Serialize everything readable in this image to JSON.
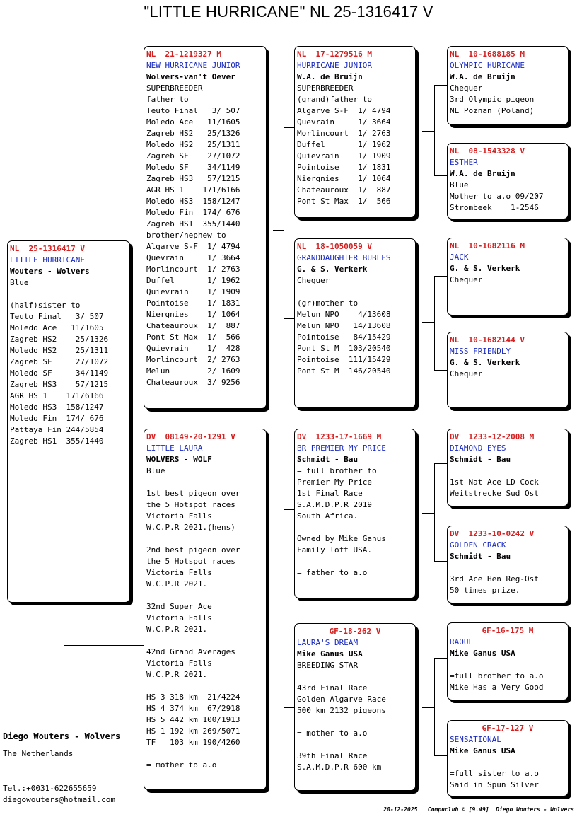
{
  "title": "\"LITTLE HURRICANE\"  NL  25-1316417 V",
  "subject": {
    "ring": "NL  25-1316417 V",
    "name": "LITTLE HURRICANE",
    "owner": "Wouters - Wolvers",
    "lines": [
      "Blue",
      "",
      "(half)sister to",
      "Teuto Final   3/ 507",
      "Moledo Ace   11/1605",
      "Zagreb HS2    25/1326",
      "Moledo HS2    25/1311",
      "Zagreb SF     27/1072",
      "Moledo SF     34/1149",
      "Zagreb HS3    57/1215",
      "AGR HS 1    171/6166",
      "Moledo HS3  158/1247",
      "Moledo Fin  174/ 676",
      "Pattaya Fin 244/5854",
      "Zagreb HS1  355/1440"
    ]
  },
  "father": {
    "ring": "NL  21-1219327 M",
    "name": "NEW HURRICANE JUNIOR",
    "owner": "Wolvers-van't Oever",
    "lines": [
      "SUPERBREEDER",
      "father to",
      "Teuto Final   3/ 507",
      "Moledo Ace   11/1605",
      "Zagreb HS2   25/1326",
      "Moledo HS2   25/1311",
      "Zagreb SF    27/1072",
      "Moledo SF    34/1149",
      "Zagreb HS3   57/1215",
      "AGR HS 1    171/6166",
      "Moledo HS3  158/1247",
      "Moledo Fin  174/ 676",
      "Zagreb HS1  355/1440",
      "brother/nephew to",
      "Algarve S-F  1/ 4794",
      "Quevrain     1/ 3664",
      "Morlincourt  1/ 2763",
      "Duffel       1/ 1962",
      "Quievrain    1/ 1909",
      "Pointoise    1/ 1831",
      "Niergnies    1/ 1064",
      "Chateauroux  1/  887",
      "Pont St Max  1/  566",
      "Quievrain    1/  428",
      "Morlincourt  2/ 2763",
      "Melun        2/ 1609",
      "Chateauroux  3/ 9256"
    ]
  },
  "mother": {
    "ring": "DV  08149-20-1291 V",
    "name": "LITTLE LAURA",
    "owner": "WOLVERS - WOLF",
    "lines": [
      "Blue",
      "",
      "1st best pigeon over",
      "the 5 Hotspot races",
      "Victoria Falls",
      "W.C.P.R 2021.(hens)",
      "",
      "2nd best pigeon over",
      "the 5 Hotspot races",
      "Victoria Falls",
      "W.C.P.R 2021.",
      "",
      "32nd Super Ace",
      "Victoria Falls",
      "W.C.P.R 2021.",
      "",
      "42nd Grand Averages",
      "Victoria Falls",
      "W.C.P.R 2021.",
      "",
      "HS 3 318 km  21/4224",
      "HS 4 374 km  67/2918",
      "HS 5 442 km 100/1913",
      "HS 1 192 km 269/5071",
      "TF   103 km 190/4260",
      "",
      "= mother to a.o"
    ]
  },
  "ff": {
    "ring": "NL  17-1279516 M",
    "name": "HURRICANE JUNIOR",
    "owner": "W.A. de Bruijn",
    "lines": [
      "SUPERBREEDER",
      "(grand)father to",
      "Algarve S-F  1/ 4794",
      "Quevrain     1/ 3664",
      "Morlincourt  1/ 2763",
      "Duffel       1/ 1962",
      "Quievrain    1/ 1909",
      "Pointoise    1/ 1831",
      "Niergnies    1/ 1064",
      "Chateauroux  1/  887",
      "Pont St Max  1/  566"
    ]
  },
  "fm": {
    "ring": "NL  18-1050059 V",
    "name": "GRANDDAUGHTER BUBLES",
    "owner": "G. & S. Verkerk",
    "lines": [
      "Chequer",
      "",
      "(gr)mother to",
      "Melun NPO    4/13608",
      "Melun NPO   14/13608",
      "Pointoise   84/15429",
      "Pont St M  103/20540",
      "Pointoise  111/15429",
      "Pont St M  146/20540"
    ]
  },
  "mf": {
    "ring": "DV  1233-17-1669 M",
    "name": "BR PREMIER MY PRICE",
    "owner": "Schmidt - Bau",
    "lines": [
      "= full brother to",
      "Premier My Price",
      "1st Final Race",
      "S.A.M.D.P.R 2019",
      "South Africa.",
      "",
      "Owned by Mike Ganus",
      "Family loft USA.",
      "",
      "= father to a.o"
    ]
  },
  "mm": {
    "ring": "GF-18-262 V",
    "name": "LAURA'S DREAM",
    "owner": "Mike Ganus USA",
    "lines": [
      "BREEDING STAR",
      "",
      "43rd Final Race",
      "Golden Algarve Race",
      "500 km 2132 pigeons",
      "",
      "= mother to a.o",
      "",
      "39th Final Race",
      "S.A.M.D.P.R 600 km"
    ]
  },
  "fff": {
    "ring": "NL  10-1688185 M",
    "name": "OLYMPIC HURICANE",
    "owner": "W.A. de Bruijn",
    "lines": [
      "Chequer",
      "3rd Olympic pigeon",
      "NL Poznan (Poland)"
    ]
  },
  "ffm": {
    "ring": "NL  08-1543328 V",
    "name": "ESTHER",
    "owner": "W.A. de Bruijn",
    "lines": [
      "Blue",
      "Mother to a.o 09/207",
      "Strombeek    1-2546"
    ]
  },
  "fmf": {
    "ring": "NL  10-1682116 M",
    "name": "JACK",
    "owner": "G. & S. Verkerk",
    "lines": [
      "Chequer"
    ]
  },
  "fmm": {
    "ring": "NL  10-1682144 V",
    "name": "MISS FRIENDLY",
    "owner": "G. & S. Verkerk",
    "lines": [
      "Chequer"
    ]
  },
  "mff": {
    "ring": "DV  1233-12-2008 M",
    "name": "DIAMOND EYES",
    "owner": "Schmidt - Bau",
    "lines": [
      "",
      "1st Nat Ace LD Cock",
      "Weitstrecke Sud Ost"
    ]
  },
  "mfm": {
    "ring": "DV  1233-10-0242 V",
    "name": "GOLDEN CRACK",
    "owner": "Schmidt - Bau",
    "lines": [
      "",
      "3rd Ace Hen Reg-Ost",
      "50 times prize."
    ]
  },
  "mmf": {
    "ring": "GF-16-175 M",
    "name": "RAOUL",
    "owner": "Mike Ganus USA",
    "lines": [
      "",
      "=full brother to a.o",
      "Mike Has a Very Good"
    ]
  },
  "mmm": {
    "ring": "GF-17-127 V",
    "name": "SENSATIONAL",
    "owner": "Mike Ganus USA",
    "lines": [
      "",
      "=full sister to a.o",
      "Said in Spun Silver"
    ]
  },
  "breeder": {
    "name": "Diego Wouters - Wolvers",
    "country": "The Netherlands",
    "phone": "Tel.:+0031-622655659",
    "email": "diegowouters@hotmail.com"
  },
  "credit": "20-12-2025   Compuclub © [9.49]  Diego Wouters - Wolvers"
}
